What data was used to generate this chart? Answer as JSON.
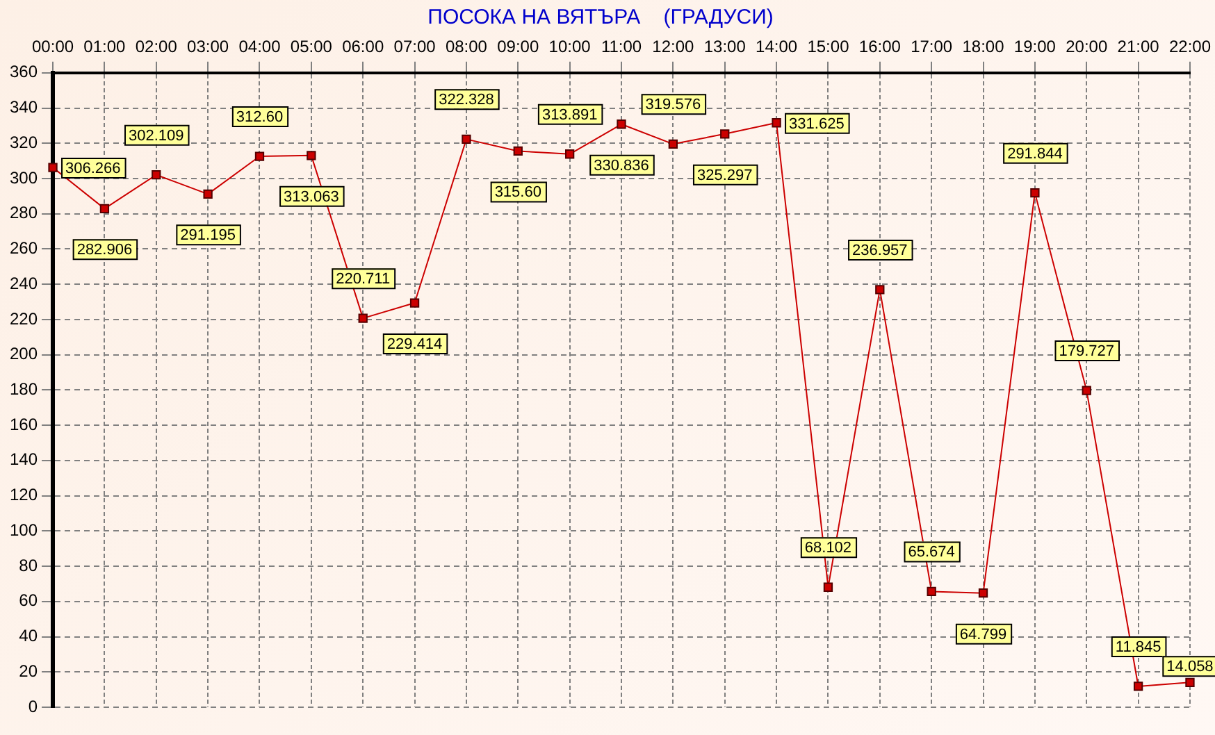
{
  "chart_data": {
    "type": "line",
    "title": "ПОСОКА НА ВЯТЪРА    (ГРАДУСИ)",
    "categories": [
      "00:00",
      "01:00",
      "02:00",
      "03:00",
      "04:00",
      "05:00",
      "06:00",
      "07:00",
      "08:00",
      "09:00",
      "10:00",
      "11:00",
      "12:00",
      "13:00",
      "14:00",
      "15:00",
      "16:00",
      "17:00",
      "18:00",
      "19:00",
      "20:00",
      "21:00",
      "22:00"
    ],
    "series": [
      {
        "color": "#cc0000",
        "values": [
          306.266,
          282.906,
          302.109,
          291.195,
          312.6,
          313.063,
          220.711,
          229.414,
          322.328,
          315.6,
          313.891,
          330.836,
          319.576,
          325.297,
          331.625,
          68.102,
          236.957,
          65.674,
          64.799,
          291.844,
          179.727,
          11.845,
          14.058
        ],
        "value_labels": [
          "306.266",
          "282.906",
          "302.109",
          "291.195",
          "312.60",
          "313.063",
          "220.711",
          "229.414",
          "322.328",
          "315.60",
          "313.891",
          "330.836",
          "319.576",
          "325.297",
          "331.625",
          "68.102",
          "236.957",
          "65.674",
          "64.799",
          "291.844",
          "179.727",
          "11.845",
          "14.058"
        ]
      }
    ],
    "ylim": [
      0,
      360
    ],
    "yticks": [
      0,
      20,
      40,
      60,
      80,
      100,
      120,
      140,
      160,
      180,
      200,
      220,
      240,
      260,
      280,
      300,
      320,
      340,
      360
    ],
    "grid": true,
    "legend": false,
    "marker": "square",
    "line_style": "solid"
  }
}
